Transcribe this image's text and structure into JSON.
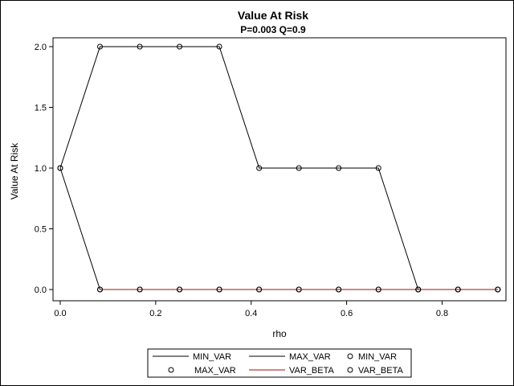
{
  "chart_data": {
    "type": "line",
    "title": "Value At Risk",
    "subtitle": "P=0.003 Q=0.9",
    "xlabel": "rho",
    "ylabel": "Value At Risk",
    "xlim": [
      0,
      0.917
    ],
    "ylim": [
      -0.05,
      2.05
    ],
    "x_ticks": [
      "0.0",
      "0.2",
      "0.4",
      "0.6",
      "0.8"
    ],
    "y_ticks": [
      "0.0",
      "0.5",
      "1.0",
      "1.5",
      "2.0"
    ],
    "x_tick_values": [
      0,
      0.2,
      0.4,
      0.6,
      0.8
    ],
    "y_tick_values": [
      0,
      0.5,
      1.0,
      1.5,
      2.0
    ],
    "x": [
      0,
      0.0833,
      0.1667,
      0.25,
      0.3333,
      0.4167,
      0.5,
      0.5833,
      0.6667,
      0.75,
      0.8333,
      0.9167
    ],
    "series": [
      {
        "name": "MIN_VAR",
        "color": "#000000",
        "values": [
          1,
          0,
          0,
          0,
          0,
          0,
          0,
          0,
          0,
          0,
          0,
          0
        ]
      },
      {
        "name": "MAX_VAR",
        "color": "#000000",
        "values": [
          1,
          2,
          2,
          2,
          2,
          1,
          1,
          1,
          1,
          0,
          0,
          0
        ]
      },
      {
        "name": "VAR_BETA",
        "color": "#a01010",
        "values": [
          null,
          0,
          0,
          0,
          0,
          0,
          0,
          0,
          0,
          0,
          0,
          0
        ]
      }
    ],
    "grid": false,
    "legend_placement": "bottom",
    "legend": {
      "rows": [
        [
          {
            "type": "line",
            "label": "MIN_VAR",
            "color": "#000000"
          },
          {
            "type": "line",
            "label": "MAX_VAR",
            "color": "#000000"
          },
          {
            "type": "marker",
            "label": "MIN_VAR",
            "color": "#000000"
          }
        ],
        [
          {
            "type": "marker",
            "label": "MAX_VAR",
            "color": "#000000"
          },
          {
            "type": "line",
            "label": "VAR_BETA",
            "color": "#a01010"
          },
          {
            "type": "marker",
            "label": "VAR_BETA",
            "color": "#000000"
          }
        ]
      ]
    }
  }
}
